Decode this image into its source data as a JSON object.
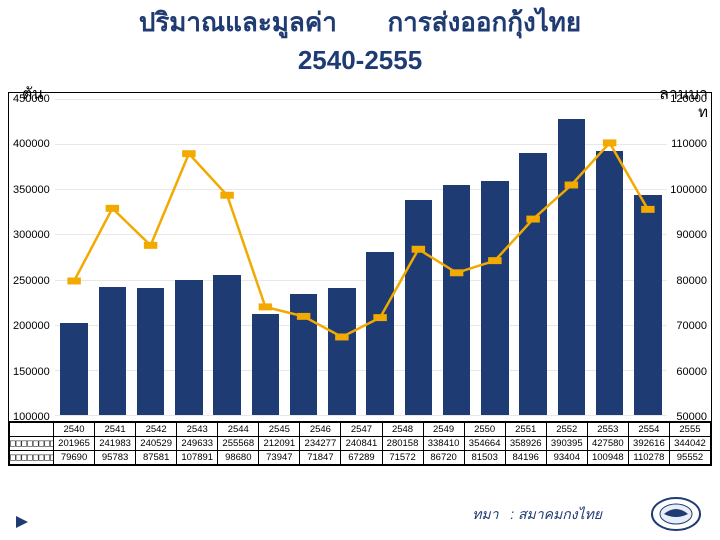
{
  "title": {
    "line1_left": "ปริมาณและมูลค่า",
    "line1_right": "การส่งออกกุ้งไทย",
    "line2": "2540-2555",
    "color": "#1f3b73"
  },
  "axis": {
    "left_label": "ตัน",
    "right_label_l1": "ลานบา",
    "right_label_l2": "ท"
  },
  "chart": {
    "type": "bar+line",
    "years": [
      "2540",
      "2541",
      "2542",
      "2543",
      "2544",
      "2545",
      "2546",
      "2547",
      "2548",
      "2549",
      "2550",
      "2551",
      "2552",
      "2553",
      "2554",
      "2555"
    ],
    "bars": {
      "color": "#1f3b73",
      "ymin": 100000,
      "ymax": 450000,
      "ticks": [
        450000,
        400000,
        350000,
        300000,
        250000,
        200000,
        150000,
        100000
      ],
      "values": [
        201965,
        241983,
        240529,
        249633,
        255568,
        212091,
        234277,
        240841,
        280158,
        338410,
        354664,
        358926,
        390395,
        427580,
        392616,
        344042
      ]
    },
    "line": {
      "color": "#f2a900",
      "marker": "square",
      "marker_size": 7,
      "stroke_width": 2.5,
      "ymin": 50000,
      "ymax": 120000,
      "ticks": [
        120000,
        110000,
        100000,
        90000,
        80000,
        70000,
        60000,
        50000
      ],
      "values": [
        79690,
        95783,
        87581,
        107891,
        98680,
        73947,
        71847,
        67289,
        71572,
        86720,
        81503,
        84196,
        93404,
        100948,
        110278,
        95552
      ]
    },
    "grid_color": "#e8e8e8",
    "background": "#ffffff"
  },
  "table": {
    "row1_header": "□□□□□□□□",
    "row2_header": "□□□□□□□□"
  },
  "footer": {
    "source_label": "ทมา",
    "source_value": ": สมาคมกงไทย",
    "text_color": "#1f3b73"
  }
}
